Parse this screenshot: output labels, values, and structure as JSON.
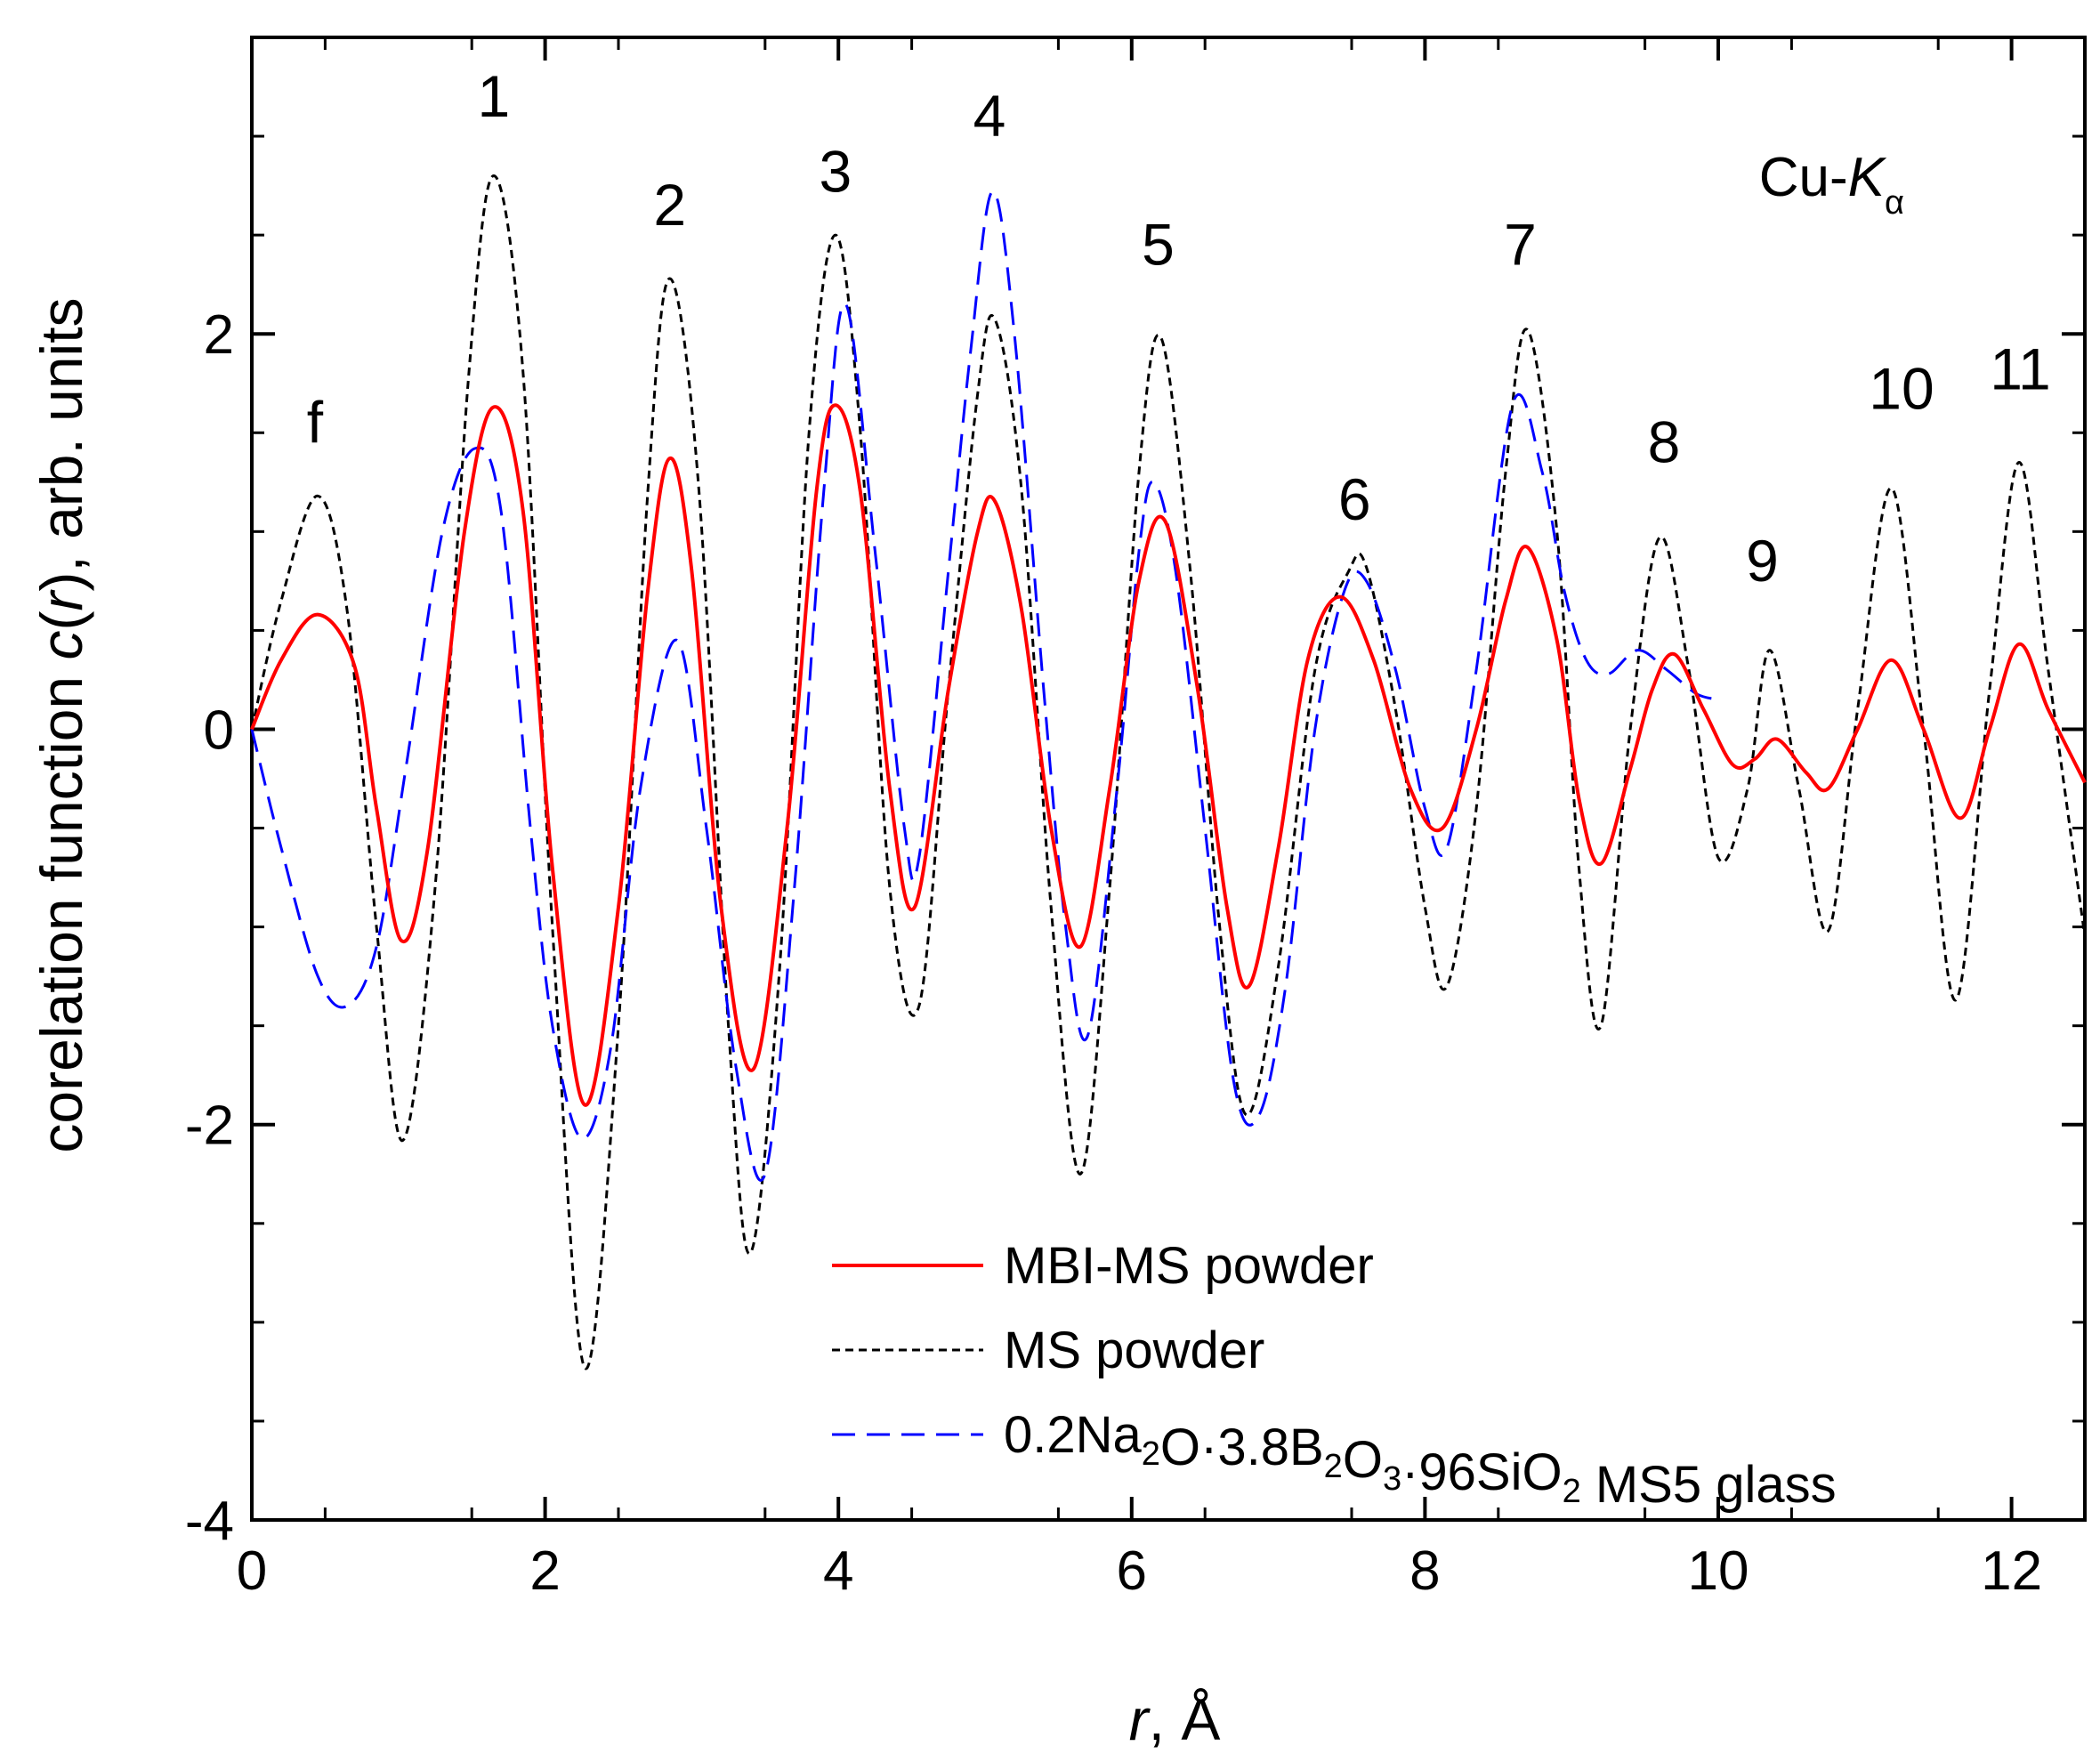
{
  "chart_data": {
    "type": "line",
    "xlabel_var": "r",
    "xlabel_unit": ", Å",
    "ylabel_pre": "corelation function ",
    "ylabel_var": "c",
    "ylabel_paren_open": "(",
    "ylabel_var_r": "r",
    "ylabel_post": "), arb. units",
    "xlim": [
      0,
      12.5
    ],
    "ylim": [
      -4,
      3.5
    ],
    "x_ticks": [
      0,
      2,
      4,
      6,
      8,
      10,
      12
    ],
    "y_ticks": [
      -4,
      -2,
      0,
      2
    ],
    "x_tick_labels": [
      "0",
      "2",
      "4",
      "6",
      "8",
      "10",
      "12"
    ],
    "y_tick_labels": [
      "-4",
      "-2",
      "0",
      "2"
    ],
    "annotation": {
      "base": "Cu-",
      "italic": "K",
      "sub": "α"
    },
    "peak_labels": [
      {
        "text": "f",
        "x": 0.43,
        "y": 1.45
      },
      {
        "text": "1",
        "x": 1.65,
        "y": 3.1
      },
      {
        "text": "2",
        "x": 2.85,
        "y": 2.55
      },
      {
        "text": "3",
        "x": 3.98,
        "y": 2.72
      },
      {
        "text": "4",
        "x": 5.03,
        "y": 3.0
      },
      {
        "text": "5",
        "x": 6.18,
        "y": 2.35
      },
      {
        "text": "6",
        "x": 7.52,
        "y": 1.06
      },
      {
        "text": "7",
        "x": 8.65,
        "y": 2.35
      },
      {
        "text": "8",
        "x": 9.63,
        "y": 1.35
      },
      {
        "text": "9",
        "x": 10.3,
        "y": 0.75
      },
      {
        "text": "10",
        "x": 11.25,
        "y": 1.62
      },
      {
        "text": "11",
        "x": 12.06,
        "y": 1.72
      }
    ],
    "legend": {
      "position": "lower-center",
      "entries": [
        {
          "series": 0,
          "label": "MBI-MS powder"
        },
        {
          "series": 1,
          "label": "MS powder"
        },
        {
          "series": 2,
          "parts": [
            {
              "t": "0.2Na"
            },
            {
              "t": "2",
              "sub": true
            },
            {
              "t": "O·3.8B"
            },
            {
              "t": "2",
              "sub": true
            },
            {
              "t": "O"
            },
            {
              "t": "3",
              "sub": true
            },
            {
              "t": "·96SiO"
            },
            {
              "t": "2",
              "sub": true
            },
            {
              "t": " MS5 glass"
            }
          ]
        }
      ]
    },
    "series": [
      {
        "name": "MBI-MS powder",
        "color": "#ff0000",
        "dash": "solid",
        "points": [
          [
            0,
            0
          ],
          [
            0.2,
            0.35
          ],
          [
            0.45,
            0.58
          ],
          [
            0.7,
            0.32
          ],
          [
            0.85,
            -0.4
          ],
          [
            1.02,
            -1.07
          ],
          [
            1.2,
            -0.6
          ],
          [
            1.45,
            1.0
          ],
          [
            1.65,
            1.63
          ],
          [
            1.85,
            1.1
          ],
          [
            2.05,
            -0.7
          ],
          [
            2.27,
            -1.9
          ],
          [
            2.5,
            -0.9
          ],
          [
            2.7,
            0.7
          ],
          [
            2.85,
            1.37
          ],
          [
            3.0,
            0.8
          ],
          [
            3.2,
            -0.9
          ],
          [
            3.42,
            -1.72
          ],
          [
            3.65,
            -0.5
          ],
          [
            3.85,
            1.2
          ],
          [
            3.98,
            1.64
          ],
          [
            4.15,
            1.2
          ],
          [
            4.35,
            -0.3
          ],
          [
            4.52,
            -0.9
          ],
          [
            4.75,
            0.2
          ],
          [
            4.95,
            1.0
          ],
          [
            5.07,
            1.15
          ],
          [
            5.25,
            0.6
          ],
          [
            5.45,
            -0.5
          ],
          [
            5.65,
            -1.1
          ],
          [
            5.85,
            -0.3
          ],
          [
            6.05,
            0.75
          ],
          [
            6.23,
            1.05
          ],
          [
            6.45,
            0.2
          ],
          [
            6.65,
            -0.9
          ],
          [
            6.8,
            -1.3
          ],
          [
            7.0,
            -0.6
          ],
          [
            7.2,
            0.35
          ],
          [
            7.42,
            0.67
          ],
          [
            7.65,
            0.35
          ],
          [
            7.9,
            -0.3
          ],
          [
            8.12,
            -0.5
          ],
          [
            8.35,
            0.0
          ],
          [
            8.55,
            0.65
          ],
          [
            8.7,
            0.92
          ],
          [
            8.9,
            0.45
          ],
          [
            9.05,
            -0.35
          ],
          [
            9.2,
            -0.68
          ],
          [
            9.4,
            -0.2
          ],
          [
            9.55,
            0.2
          ],
          [
            9.7,
            0.38
          ],
          [
            9.9,
            0.1
          ],
          [
            10.1,
            -0.18
          ],
          [
            10.25,
            -0.15
          ],
          [
            10.4,
            -0.05
          ],
          [
            10.6,
            -0.22
          ],
          [
            10.75,
            -0.3
          ],
          [
            10.95,
            0.0
          ],
          [
            11.18,
            0.35
          ],
          [
            11.4,
            0.0
          ],
          [
            11.65,
            -0.45
          ],
          [
            11.85,
            0.0
          ],
          [
            12.05,
            0.43
          ],
          [
            12.25,
            0.1
          ],
          [
            12.5,
            -0.27
          ]
        ]
      },
      {
        "name": "MS powder",
        "color": "#000000",
        "dash": "short",
        "points": [
          [
            0,
            0
          ],
          [
            0.2,
            0.65
          ],
          [
            0.45,
            1.18
          ],
          [
            0.65,
            0.6
          ],
          [
            0.85,
            -1.0
          ],
          [
            1.03,
            -2.08
          ],
          [
            1.25,
            -0.8
          ],
          [
            1.48,
            1.8
          ],
          [
            1.65,
            2.8
          ],
          [
            1.85,
            1.8
          ],
          [
            2.05,
            -1.0
          ],
          [
            2.27,
            -3.23
          ],
          [
            2.5,
            -1.5
          ],
          [
            2.7,
            1.2
          ],
          [
            2.85,
            2.28
          ],
          [
            3.05,
            1.2
          ],
          [
            3.25,
            -1.5
          ],
          [
            3.4,
            -2.65
          ],
          [
            3.6,
            -1.2
          ],
          [
            3.8,
            1.5
          ],
          [
            3.98,
            2.5
          ],
          [
            4.15,
            1.5
          ],
          [
            4.35,
            -0.8
          ],
          [
            4.55,
            -1.4
          ],
          [
            4.75,
            0.2
          ],
          [
            4.95,
            1.7
          ],
          [
            5.07,
            2.07
          ],
          [
            5.25,
            1.2
          ],
          [
            5.45,
            -0.9
          ],
          [
            5.65,
            -2.25
          ],
          [
            5.85,
            -0.8
          ],
          [
            6.05,
            1.3
          ],
          [
            6.2,
            1.98
          ],
          [
            6.4,
            0.8
          ],
          [
            6.6,
            -1.0
          ],
          [
            6.78,
            -1.95
          ],
          [
            7.0,
            -1.2
          ],
          [
            7.25,
            0.3
          ],
          [
            7.48,
            0.8
          ],
          [
            7.6,
            0.82
          ],
          [
            7.8,
            0.1
          ],
          [
            8.0,
            -0.9
          ],
          [
            8.15,
            -1.3
          ],
          [
            8.35,
            -0.4
          ],
          [
            8.55,
            1.3
          ],
          [
            8.7,
            2.02
          ],
          [
            8.9,
            1.0
          ],
          [
            9.05,
            -0.7
          ],
          [
            9.2,
            -1.5
          ],
          [
            9.4,
            0.0
          ],
          [
            9.6,
            0.97
          ],
          [
            9.8,
            0.3
          ],
          [
            10.0,
            -0.65
          ],
          [
            10.2,
            -0.3
          ],
          [
            10.35,
            0.4
          ],
          [
            10.55,
            -0.3
          ],
          [
            10.75,
            -1.02
          ],
          [
            10.95,
            0.1
          ],
          [
            11.18,
            1.22
          ],
          [
            11.4,
            0.0
          ],
          [
            11.62,
            -1.37
          ],
          [
            11.85,
            0.2
          ],
          [
            12.05,
            1.35
          ],
          [
            12.25,
            0.3
          ],
          [
            12.5,
            -1.05
          ]
        ]
      },
      {
        "name": "0.2Na2O·3.8B2O3·96SiO2 MS5 glass",
        "color": "#0000ff",
        "dash": "long",
        "points": [
          [
            0,
            0
          ],
          [
            0.2,
            -0.6
          ],
          [
            0.45,
            -1.25
          ],
          [
            0.65,
            -1.4
          ],
          [
            0.85,
            -1.1
          ],
          [
            1.05,
            -0.2
          ],
          [
            1.3,
            1.0
          ],
          [
            1.52,
            1.42
          ],
          [
            1.7,
            1.1
          ],
          [
            1.9,
            -0.5
          ],
          [
            2.05,
            -1.5
          ],
          [
            2.25,
            -2.07
          ],
          [
            2.45,
            -1.6
          ],
          [
            2.65,
            -0.3
          ],
          [
            2.9,
            0.45
          ],
          [
            3.1,
            -0.5
          ],
          [
            3.3,
            -1.7
          ],
          [
            3.5,
            -2.25
          ],
          [
            3.7,
            -0.8
          ],
          [
            3.9,
            1.2
          ],
          [
            4.05,
            2.15
          ],
          [
            4.25,
            0.9
          ],
          [
            4.45,
            -0.5
          ],
          [
            4.55,
            -0.65
          ],
          [
            4.75,
            0.8
          ],
          [
            4.9,
            1.9
          ],
          [
            5.05,
            2.72
          ],
          [
            5.2,
            2.0
          ],
          [
            5.4,
            0.2
          ],
          [
            5.55,
            -1.0
          ],
          [
            5.7,
            -1.55
          ],
          [
            5.9,
            -0.3
          ],
          [
            6.05,
            0.9
          ],
          [
            6.15,
            1.25
          ],
          [
            6.3,
            0.8
          ],
          [
            6.5,
            -0.5
          ],
          [
            6.7,
            -1.8
          ],
          [
            6.87,
            -1.95
          ],
          [
            7.05,
            -1.3
          ],
          [
            7.25,
            0.0
          ],
          [
            7.45,
            0.7
          ],
          [
            7.6,
            0.75
          ],
          [
            7.8,
            0.3
          ],
          [
            8.0,
            -0.4
          ],
          [
            8.15,
            -0.6
          ],
          [
            8.35,
            0.3
          ],
          [
            8.6,
            1.65
          ],
          [
            8.8,
            1.3
          ],
          [
            8.95,
            0.7
          ],
          [
            9.1,
            0.35
          ],
          [
            9.25,
            0.28
          ],
          [
            9.45,
            0.4
          ],
          [
            9.65,
            0.3
          ],
          [
            9.85,
            0.18
          ],
          [
            10.0,
            0.15
          ]
        ]
      }
    ]
  }
}
